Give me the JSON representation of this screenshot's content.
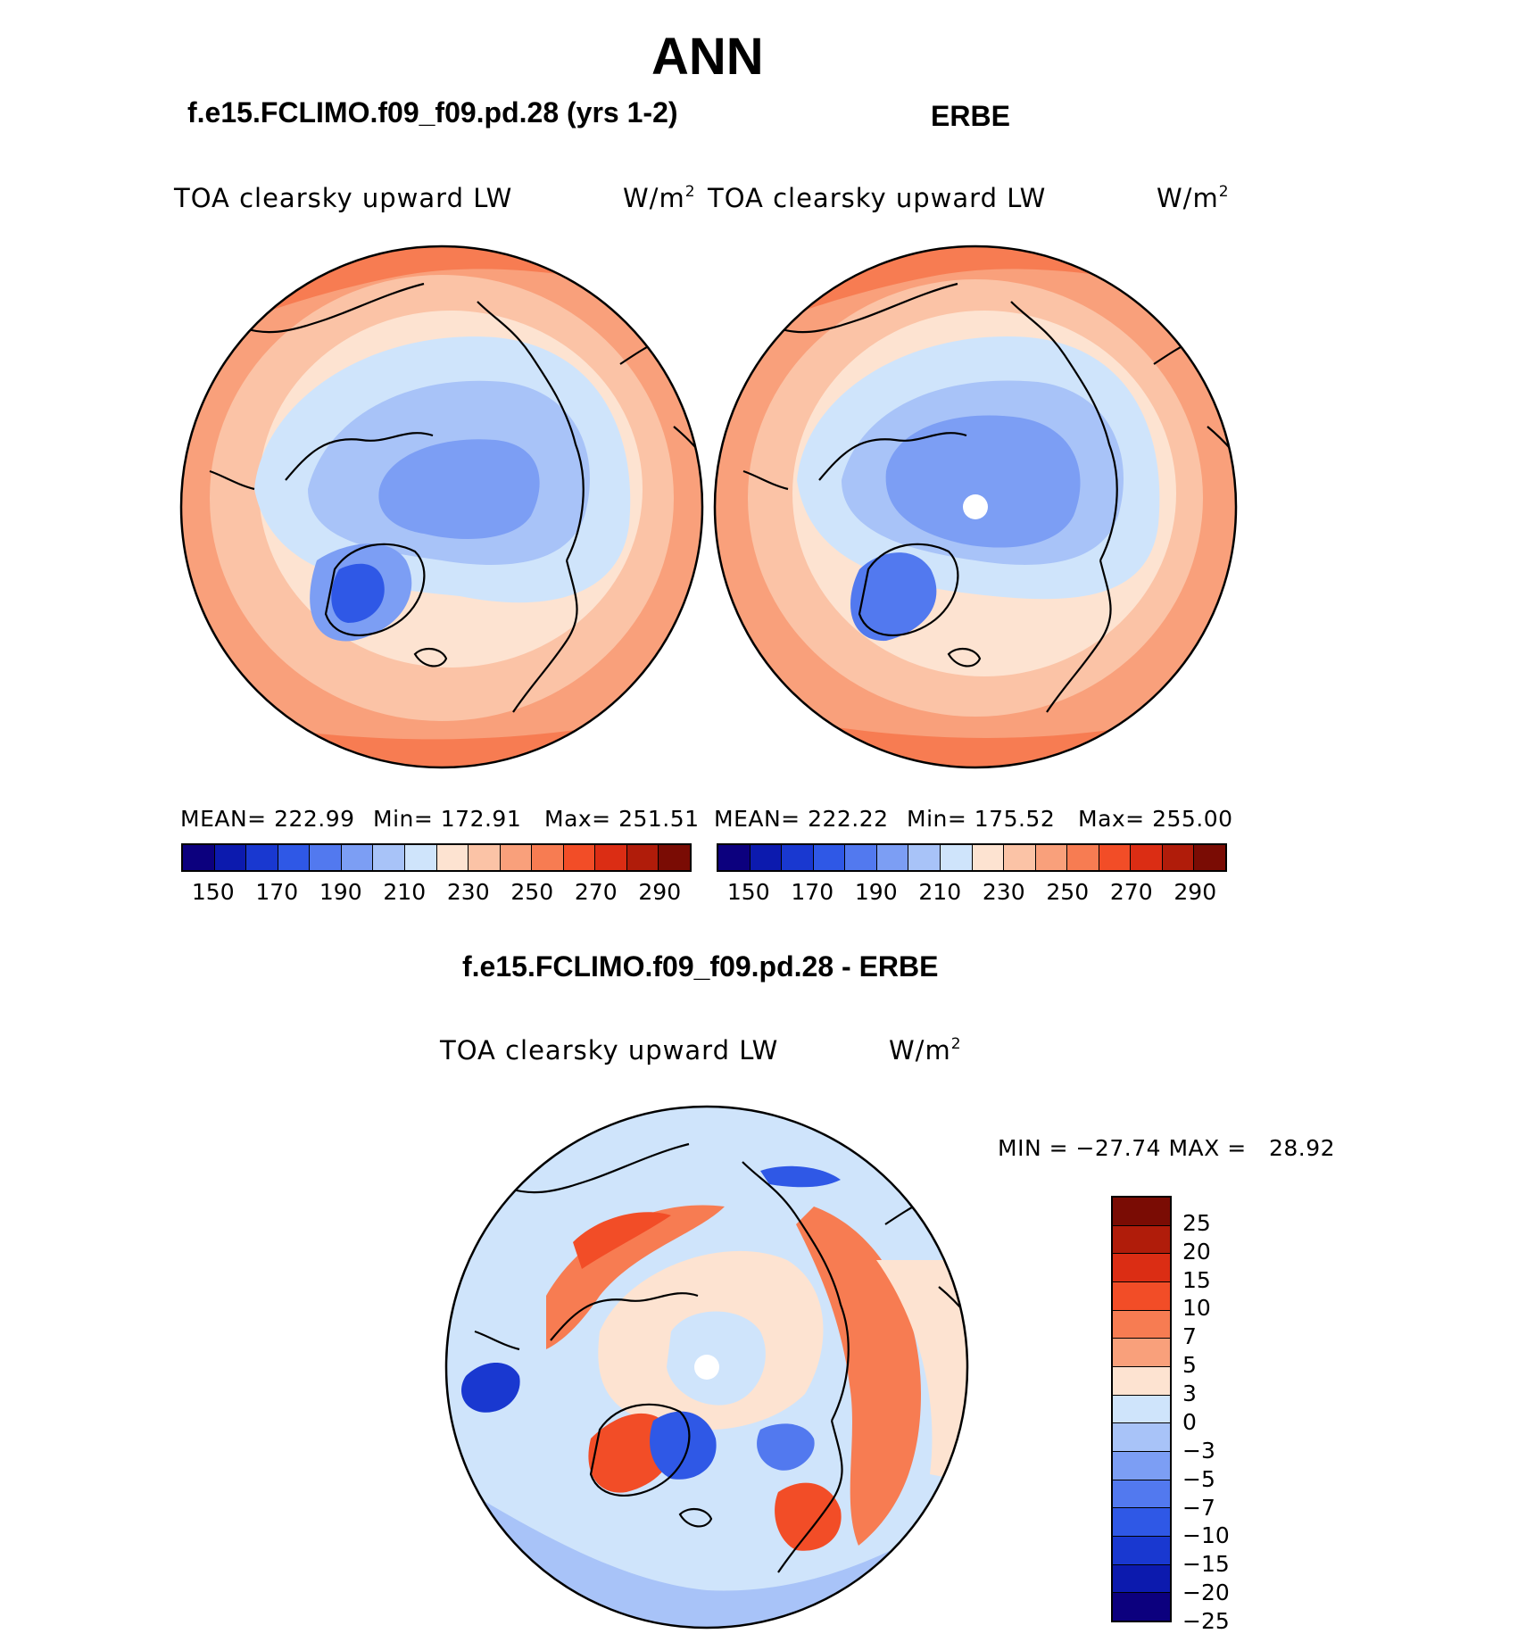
{
  "title": "ANN",
  "panels": [
    {
      "subtitle": "f.e15.FCLIMO.f09_f09.pd.28 (yrs 1-2)",
      "variable": "TOA clearsky upward LW",
      "units": "W/m",
      "units_exp": "2",
      "stats": {
        "mean": "MEAN= 222.99",
        "min": "Min= 172.91",
        "max": "Max= 251.51"
      }
    },
    {
      "subtitle": "ERBE",
      "variable": "TOA clearsky upward LW",
      "units": "W/m",
      "units_exp": "2",
      "stats": {
        "mean": "MEAN= 222.22",
        "min": "Min= 175.52",
        "max": "Max= 255.00"
      }
    },
    {
      "subtitle": "f.e15.FCLIMO.f09_f09.pd.28 - ERBE",
      "variable": "TOA clearsky upward LW",
      "units": "W/m",
      "units_exp": "2",
      "minmax": "MIN = −27.74 MAX =   28.92"
    }
  ],
  "colorbar_abs": {
    "colors": [
      "#0c007e",
      "#0c1aae",
      "#1938d0",
      "#2f58e6",
      "#5279ef",
      "#7c9ef4",
      "#a8c3f8",
      "#cfe4fb",
      "#fde3d1",
      "#fbc3a6",
      "#f9a07b",
      "#f77c52",
      "#f24d27",
      "#db2d14",
      "#b01c0a",
      "#7a0c04"
    ],
    "ticks": [
      "150",
      "170",
      "190",
      "210",
      "230",
      "250",
      "270",
      "290"
    ]
  },
  "colorbar_diff": {
    "colors": [
      "#7a0c04",
      "#b01c0a",
      "#db2d14",
      "#f24d27",
      "#f77c52",
      "#f9a07b",
      "#fde3d1",
      "#cfe4fb",
      "#a8c3f8",
      "#7c9ef4",
      "#5279ef",
      "#2f58e6",
      "#1938d0",
      "#0c1aae",
      "#0c007e"
    ],
    "ticks": [
      "25",
      "20",
      "15",
      "10",
      "7",
      "5",
      "3",
      "0",
      "−3",
      "−5",
      "−7",
      "−10",
      "−15",
      "−20",
      "−25"
    ]
  }
}
